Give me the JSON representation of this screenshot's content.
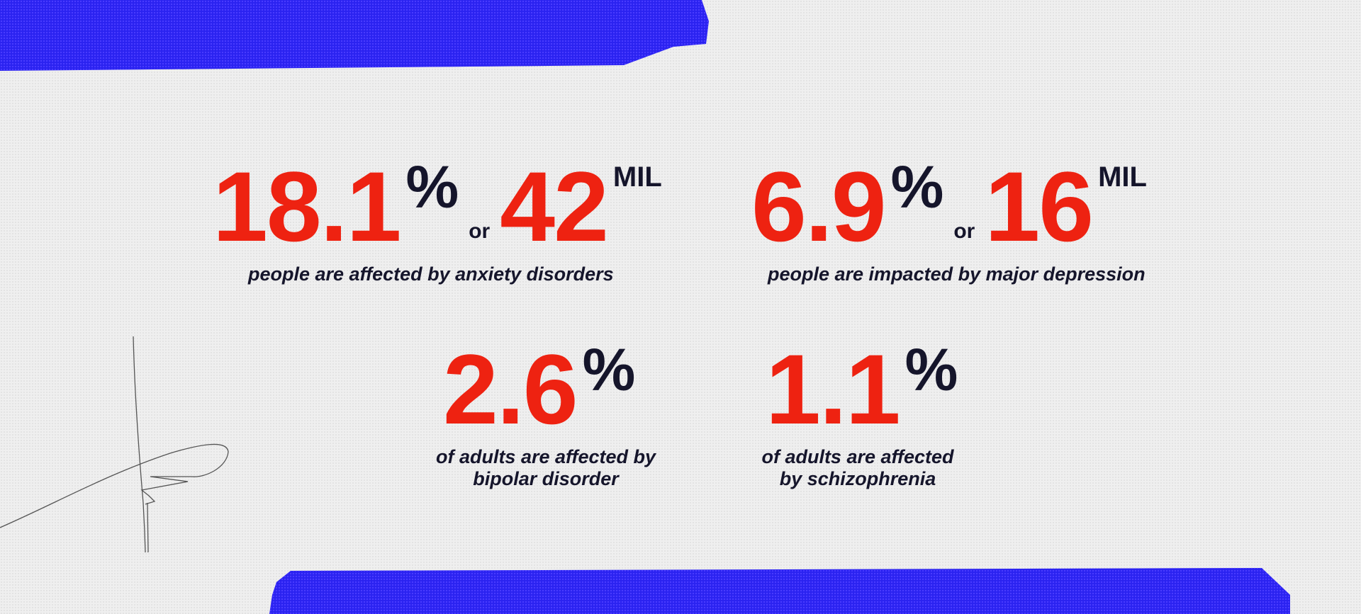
{
  "colors": {
    "accent_red": "#ee2211",
    "dark": "#15152b",
    "band_blue": "#2a22f0"
  },
  "stats": [
    {
      "value": "18.1",
      "unit": "%",
      "connector": "or",
      "alt_value": "42",
      "alt_unit": "MIL",
      "caption": "people are affected by anxiety disorders"
    },
    {
      "value": "6.9",
      "unit": "%",
      "connector": "or",
      "alt_value": "16",
      "alt_unit": "MIL",
      "caption": "people are impacted by major depression"
    },
    {
      "value": "2.6",
      "unit": "%",
      "caption_lines": [
        "of adults are affected by",
        "bipolar disorder"
      ]
    },
    {
      "value": "1.1",
      "unit": "%",
      "caption_lines": [
        "of adults are affected",
        "by schizophrenia"
      ]
    }
  ]
}
